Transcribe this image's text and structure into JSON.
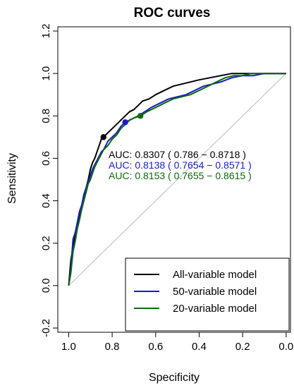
{
  "chart_data": {
    "type": "line",
    "title": "ROC curves",
    "xlabel": "Specificity",
    "ylabel": "Sensitivity",
    "xlim": [
      1.05,
      -0.02
    ],
    "ylim": [
      -0.22,
      1.22
    ],
    "x_reversed": true,
    "x_ticks": [
      1.0,
      0.8,
      0.6,
      0.4,
      0.2,
      0.0
    ],
    "x_tick_labels": [
      "1.0",
      "0.8",
      "0.6",
      "0.4",
      "0.2",
      "0.0"
    ],
    "y_ticks": [
      -0.2,
      0.0,
      0.2,
      0.4,
      0.6,
      0.8,
      1.0,
      1.2
    ],
    "y_tick_labels": [
      "-0.2",
      "0.0",
      "0.2",
      "0.4",
      "0.6",
      "0.8",
      "1.0",
      "1.2"
    ],
    "grid": false,
    "legend_position": "bottom-right",
    "reference_line": {
      "from": [
        1.0,
        0.0
      ],
      "to": [
        0.0,
        1.0
      ],
      "color": "#bbbbbb"
    },
    "series": [
      {
        "name": "All-variable model",
        "color": "#000000",
        "auc_label": "AUC: 0.8307 ( 0.786 − 0.8718 )",
        "threshold_point": {
          "x": 0.84,
          "y": 0.7
        },
        "specificity": [
          1.0,
          0.99,
          0.98,
          0.97,
          0.96,
          0.95,
          0.94,
          0.93,
          0.92,
          0.91,
          0.9,
          0.89,
          0.88,
          0.87,
          0.86,
          0.85,
          0.84,
          0.82,
          0.8,
          0.78,
          0.76,
          0.74,
          0.72,
          0.7,
          0.68,
          0.66,
          0.63,
          0.6,
          0.56,
          0.52,
          0.48,
          0.44,
          0.4,
          0.35,
          0.3,
          0.25,
          0.2,
          0.15,
          0.12,
          0.0
        ],
        "sensitivity": [
          0.0,
          0.12,
          0.18,
          0.24,
          0.28,
          0.33,
          0.36,
          0.41,
          0.46,
          0.5,
          0.55,
          0.58,
          0.6,
          0.63,
          0.66,
          0.69,
          0.7,
          0.72,
          0.74,
          0.76,
          0.78,
          0.8,
          0.82,
          0.83,
          0.85,
          0.87,
          0.88,
          0.9,
          0.92,
          0.94,
          0.95,
          0.96,
          0.97,
          0.98,
          0.99,
          1.0,
          1.0,
          1.0,
          1.0,
          1.0
        ]
      },
      {
        "name": "50-variable model",
        "color": "#1a1acc",
        "auc_label": "AUC: 0.8138 ( 0.7654 − 0.8571 )",
        "threshold_point": {
          "x": 0.74,
          "y": 0.77
        },
        "specificity": [
          1.0,
          0.99,
          0.98,
          0.97,
          0.96,
          0.95,
          0.94,
          0.93,
          0.92,
          0.91,
          0.9,
          0.89,
          0.88,
          0.87,
          0.86,
          0.85,
          0.84,
          0.83,
          0.82,
          0.8,
          0.78,
          0.76,
          0.74,
          0.72,
          0.7,
          0.68,
          0.65,
          0.62,
          0.58,
          0.54,
          0.5,
          0.46,
          0.42,
          0.38,
          0.34,
          0.3,
          0.25,
          0.2,
          0.15,
          0.1,
          0.0
        ],
        "sensitivity": [
          0.0,
          0.08,
          0.22,
          0.25,
          0.3,
          0.35,
          0.38,
          0.43,
          0.46,
          0.49,
          0.52,
          0.55,
          0.57,
          0.59,
          0.61,
          0.63,
          0.64,
          0.66,
          0.68,
          0.7,
          0.72,
          0.75,
          0.77,
          0.78,
          0.79,
          0.8,
          0.82,
          0.84,
          0.86,
          0.88,
          0.89,
          0.9,
          0.92,
          0.94,
          0.95,
          0.96,
          0.98,
          0.99,
          0.99,
          1.0,
          1.0
        ]
      },
      {
        "name": "20-variable model",
        "color": "#0a6a0a",
        "auc_label": "AUC: 0.8153 ( 0.7655 − 0.8615 )",
        "threshold_point": {
          "x": 0.67,
          "y": 0.8
        },
        "specificity": [
          1.0,
          0.99,
          0.98,
          0.97,
          0.96,
          0.95,
          0.94,
          0.93,
          0.92,
          0.91,
          0.9,
          0.89,
          0.88,
          0.87,
          0.86,
          0.85,
          0.84,
          0.82,
          0.8,
          0.78,
          0.76,
          0.74,
          0.72,
          0.7,
          0.67,
          0.64,
          0.6,
          0.56,
          0.52,
          0.48,
          0.44,
          0.4,
          0.36,
          0.32,
          0.28,
          0.24,
          0.2,
          0.16,
          0.12,
          0.08,
          0.0
        ],
        "sensitivity": [
          0.0,
          0.06,
          0.16,
          0.21,
          0.27,
          0.31,
          0.36,
          0.4,
          0.44,
          0.48,
          0.5,
          0.53,
          0.56,
          0.58,
          0.6,
          0.62,
          0.64,
          0.66,
          0.69,
          0.71,
          0.74,
          0.76,
          0.78,
          0.79,
          0.8,
          0.82,
          0.84,
          0.86,
          0.88,
          0.89,
          0.9,
          0.92,
          0.94,
          0.96,
          0.98,
          0.99,
          0.99,
          1.0,
          1.0,
          1.0,
          1.0
        ]
      }
    ]
  }
}
